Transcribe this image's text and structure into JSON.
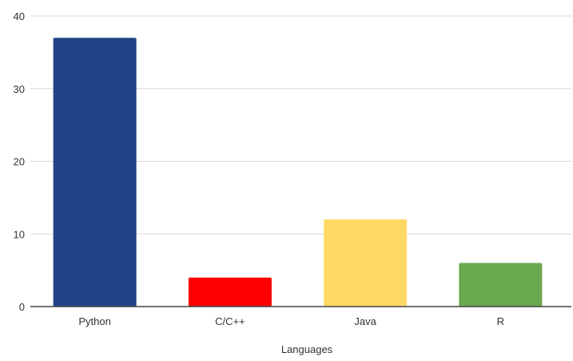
{
  "chart_data": {
    "type": "bar",
    "title": "",
    "xlabel": "Languages",
    "ylabel": "",
    "categories": [
      "Python",
      "C/C++",
      "Java",
      "R"
    ],
    "values": [
      37,
      4,
      12,
      6
    ],
    "colors": [
      "#1f4384",
      "#ff0000",
      "#ffd866",
      "#6aa84f"
    ],
    "ylim": [
      0,
      40
    ],
    "yticks": [
      0,
      10,
      20,
      30,
      40
    ],
    "grid": true,
    "legend": "none"
  }
}
